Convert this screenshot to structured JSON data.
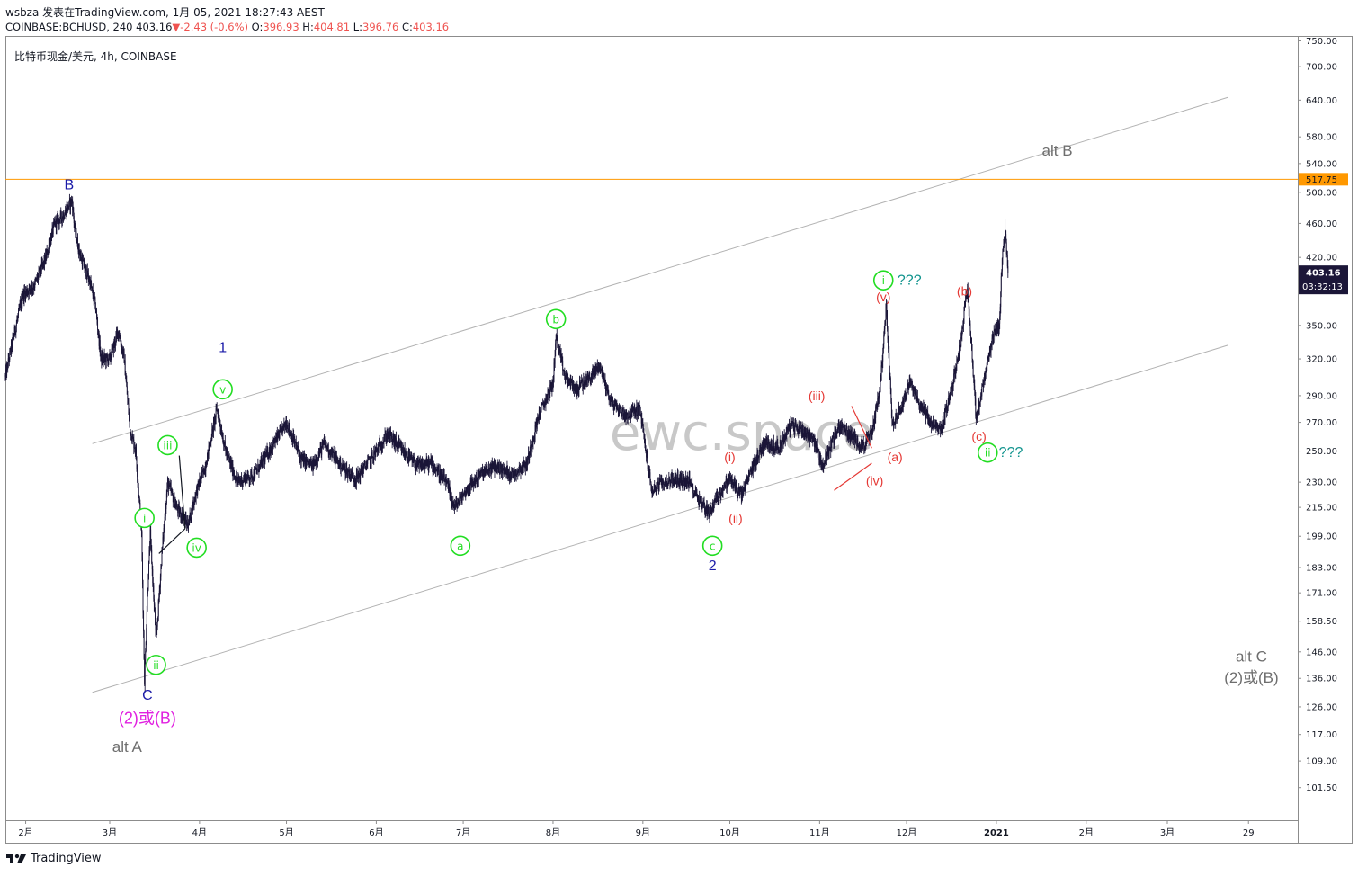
{
  "header": {
    "line1_user": "wsbza",
    "line1_published": "发表在TradingView.com, 1月 05, 2021 18:27:43 AEST",
    "line2_symbol": "COINBASE:BCHUSD, 240",
    "line2_last": "403.16",
    "line2_change": "-2.43 (-0.6%)",
    "line2_open_label": "O:",
    "line2_open": "396.93",
    "line2_high_label": "H:",
    "line2_high": "404.81",
    "line2_low_label": "L:",
    "line2_low": "396.76",
    "line2_close_label": "C:",
    "line2_close": "403.16",
    "symbol_title": "比特币现金/美元, 4h, COINBASE"
  },
  "footer": {
    "brand": "TradingView"
  },
  "colors": {
    "candle": "#1b1638",
    "channel": "#b2b2b2",
    "hline": "#ff9800",
    "green": "#22dd22",
    "red": "#e53935",
    "blue": "#1a1aa8",
    "magenta": "#e020e0",
    "grey_label": "#6e6e6e",
    "teal": "#12948e",
    "watermark": "#c8c8c8"
  },
  "chart_data": {
    "type": "candlestick",
    "symbol": "COINBASE:BCHUSD",
    "interval": "4h",
    "y_axis": {
      "scale": "log",
      "ylim": [
        93,
        760
      ],
      "ticks": [
        101.5,
        109,
        117,
        126,
        136,
        146,
        158.5,
        171,
        183,
        199,
        215,
        230,
        250,
        270,
        290,
        320,
        350,
        420,
        460,
        500,
        540,
        580,
        640,
        700,
        750
      ],
      "tick_labels": [
        "101.50",
        "109.00",
        "117.00",
        "126.00",
        "136.00",
        "146.00",
        "158.50",
        "171.00",
        "183.00",
        "199.00",
        "215.00",
        "230.00",
        "250.00",
        "270.00",
        "290.00",
        "320.00",
        "350.00",
        "420.00",
        "460.00",
        "500.00",
        "540.00",
        "580.00",
        "640.00",
        "700.00",
        "750.00"
      ],
      "last_price_label": "403.16",
      "countdown_label": "03:32:13",
      "hline_label": "517.75"
    },
    "x_axis": {
      "xlim": [
        "2020-01-25",
        "2021-04-15"
      ],
      "ticks": [
        "2020-02-01",
        "2020-03-01",
        "2020-04-01",
        "2020-05-01",
        "2020-06-01",
        "2020-07-01",
        "2020-08-01",
        "2020-09-01",
        "2020-10-01",
        "2020-11-01",
        "2020-12-01",
        "2021-01-01",
        "2021-02-01",
        "2021-03-01",
        "2021-03-29"
      ],
      "tick_labels": [
        "2月",
        "3月",
        "4月",
        "5月",
        "6月",
        "7月",
        "8月",
        "9月",
        "10月",
        "11月",
        "12月",
        "2021",
        "2月",
        "3月",
        "29"
      ]
    },
    "price_path": [
      [
        "2020-01-25",
        305
      ],
      [
        "2020-01-27",
        330
      ],
      [
        "2020-01-31",
        380
      ],
      [
        "2020-02-04",
        390
      ],
      [
        "2020-02-08",
        420
      ],
      [
        "2020-02-11",
        460
      ],
      [
        "2020-02-14",
        470
      ],
      [
        "2020-02-17",
        490
      ],
      [
        "2020-02-18",
        450
      ],
      [
        "2020-02-20",
        420
      ],
      [
        "2020-02-23",
        395
      ],
      [
        "2020-02-25",
        370
      ],
      [
        "2020-02-27",
        320
      ],
      [
        "2020-03-01",
        320
      ],
      [
        "2020-03-04",
        345
      ],
      [
        "2020-03-06",
        320
      ],
      [
        "2020-03-08",
        265
      ],
      [
        "2020-03-10",
        250
      ],
      [
        "2020-03-12",
        200
      ],
      [
        "2020-03-13",
        135
      ],
      [
        "2020-03-14",
        170
      ],
      [
        "2020-03-15",
        200
      ],
      [
        "2020-03-17",
        150
      ],
      [
        "2020-03-19",
        190
      ],
      [
        "2020-03-21",
        230
      ],
      [
        "2020-03-24",
        215
      ],
      [
        "2020-03-28",
        205
      ],
      [
        "2020-03-31",
        225
      ],
      [
        "2020-04-03",
        240
      ],
      [
        "2020-04-07",
        280
      ],
      [
        "2020-04-10",
        250
      ],
      [
        "2020-04-14",
        230
      ],
      [
        "2020-04-20",
        235
      ],
      [
        "2020-04-25",
        250
      ],
      [
        "2020-05-01",
        270
      ],
      [
        "2020-05-06",
        245
      ],
      [
        "2020-05-10",
        240
      ],
      [
        "2020-05-14",
        255
      ],
      [
        "2020-05-20",
        240
      ],
      [
        "2020-05-25",
        232
      ],
      [
        "2020-06-01",
        250
      ],
      [
        "2020-06-05",
        262
      ],
      [
        "2020-06-10",
        250
      ],
      [
        "2020-06-15",
        240
      ],
      [
        "2020-06-20",
        242
      ],
      [
        "2020-06-25",
        230
      ],
      [
        "2020-06-28",
        215
      ],
      [
        "2020-07-02",
        225
      ],
      [
        "2020-07-07",
        235
      ],
      [
        "2020-07-12",
        240
      ],
      [
        "2020-07-18",
        235
      ],
      [
        "2020-07-23",
        242
      ],
      [
        "2020-07-27",
        275
      ],
      [
        "2020-08-01",
        300
      ],
      [
        "2020-08-02",
        340
      ],
      [
        "2020-08-05",
        305
      ],
      [
        "2020-08-09",
        295
      ],
      [
        "2020-08-14",
        305
      ],
      [
        "2020-08-17",
        315
      ],
      [
        "2020-08-21",
        285
      ],
      [
        "2020-08-26",
        275
      ],
      [
        "2020-08-31",
        280
      ],
      [
        "2020-09-02",
        250
      ],
      [
        "2020-09-04",
        225
      ],
      [
        "2020-09-08",
        230
      ],
      [
        "2020-09-12",
        232
      ],
      [
        "2020-09-17",
        230
      ],
      [
        "2020-09-21",
        218
      ],
      [
        "2020-09-24",
        212
      ],
      [
        "2020-09-27",
        222
      ],
      [
        "2020-10-01",
        232
      ],
      [
        "2020-10-05",
        222
      ],
      [
        "2020-10-09",
        240
      ],
      [
        "2020-10-13",
        256
      ],
      [
        "2020-10-18",
        252
      ],
      [
        "2020-10-22",
        268
      ],
      [
        "2020-10-26",
        265
      ],
      [
        "2020-10-30",
        258
      ],
      [
        "2020-11-02",
        240
      ],
      [
        "2020-11-05",
        255
      ],
      [
        "2020-11-08",
        268
      ],
      [
        "2020-11-12",
        260
      ],
      [
        "2020-11-16",
        253
      ],
      [
        "2020-11-19",
        262
      ],
      [
        "2020-11-22",
        300
      ],
      [
        "2020-11-24",
        370
      ],
      [
        "2020-11-26",
        270
      ],
      [
        "2020-11-29",
        280
      ],
      [
        "2020-12-02",
        300
      ],
      [
        "2020-12-06",
        282
      ],
      [
        "2020-12-10",
        268
      ],
      [
        "2020-12-13",
        265
      ],
      [
        "2020-12-17",
        300
      ],
      [
        "2020-12-20",
        340
      ],
      [
        "2020-12-22",
        390
      ],
      [
        "2020-12-24",
        310
      ],
      [
        "2020-12-25",
        272
      ],
      [
        "2020-12-28",
        305
      ],
      [
        "2020-12-31",
        340
      ],
      [
        "2021-01-02",
        350
      ],
      [
        "2021-01-03",
        420
      ],
      [
        "2021-01-04",
        450
      ],
      [
        "2021-01-05",
        403
      ]
    ],
    "key_extremes": [
      {
        "date": "2020-02-17",
        "price": 490
      },
      {
        "date": "2020-03-13",
        "price": 134
      },
      {
        "date": "2020-08-02",
        "price": 342
      },
      {
        "date": "2020-09-24",
        "price": 206
      },
      {
        "date": "2020-11-24",
        "price": 376
      },
      {
        "date": "2020-12-22",
        "price": 391
      },
      {
        "date": "2020-12-25",
        "price": 268
      },
      {
        "date": "2021-01-04",
        "price": 465
      }
    ],
    "channel": {
      "upper": [
        [
          "2020-02-24",
          255
        ],
        [
          "2021-03-22",
          645
        ]
      ],
      "lower": [
        [
          "2020-02-24",
          131
        ],
        [
          "2021-03-22",
          332
        ]
      ]
    },
    "hline": {
      "price": 517.75
    },
    "wedges": [
      [
        [
          "2020-03-18",
          190
        ],
        [
          "2020-03-27",
          203
        ]
      ],
      [
        [
          "2020-03-27",
          203
        ],
        [
          "2020-03-25",
          247
        ]
      ],
      [
        [
          "2020-11-06",
          225
        ],
        [
          "2020-11-19",
          242
        ]
      ],
      [
        [
          "2020-11-12",
          282
        ],
        [
          "2020-11-19",
          252
        ]
      ]
    ],
    "annotations": [
      {
        "text": "B",
        "date": "2020-02-16",
        "price": 510,
        "color": "blue",
        "size": 16
      },
      {
        "text": "C",
        "date": "2020-03-14",
        "price": 130,
        "color": "blue",
        "size": 16
      },
      {
        "text": "(2)或(B)",
        "date": "2020-03-14",
        "price": 122,
        "color": "magenta",
        "size": 18
      },
      {
        "text": "alt A",
        "date": "2020-03-07",
        "price": 113,
        "color": "grey",
        "size": 17
      },
      {
        "text": "1",
        "date": "2020-04-09",
        "price": 330,
        "color": "blue",
        "size": 16
      },
      {
        "text": "2",
        "date": "2020-09-25",
        "price": 184,
        "color": "blue",
        "size": 16
      },
      {
        "text": "i",
        "date": "2020-03-13",
        "price": 209,
        "circle": true,
        "color": "green"
      },
      {
        "text": "ii",
        "date": "2020-03-17",
        "price": 141,
        "circle": true,
        "color": "green"
      },
      {
        "text": "iii",
        "date": "2020-03-21",
        "price": 254,
        "circle": true,
        "color": "green"
      },
      {
        "text": "iv",
        "date": "2020-03-31",
        "price": 193,
        "circle": true,
        "color": "green"
      },
      {
        "text": "v",
        "date": "2020-04-09",
        "price": 295,
        "circle": true,
        "color": "green"
      },
      {
        "text": "a",
        "date": "2020-06-30",
        "price": 194,
        "circle": true,
        "color": "green"
      },
      {
        "text": "b",
        "date": "2020-08-02",
        "price": 356,
        "circle": true,
        "color": "green"
      },
      {
        "text": "c",
        "date": "2020-09-25",
        "price": 194,
        "circle": true,
        "color": "green"
      },
      {
        "text": "i",
        "date": "2020-11-23",
        "price": 395,
        "circle": true,
        "color": "green"
      },
      {
        "text": "ii",
        "date": "2020-12-29",
        "price": 249,
        "circle": true,
        "color": "green"
      },
      {
        "text": "???",
        "date": "2020-12-02",
        "price": 395,
        "color": "teal",
        "size": 16
      },
      {
        "text": "???",
        "date": "2021-01-06",
        "price": 249,
        "color": "teal",
        "size": 16
      },
      {
        "text": "(i)",
        "date": "2020-10-01",
        "price": 246,
        "color": "red",
        "size": 14
      },
      {
        "text": "(ii)",
        "date": "2020-10-03",
        "price": 209,
        "color": "red",
        "size": 14
      },
      {
        "text": "(iii)",
        "date": "2020-10-31",
        "price": 290,
        "color": "red",
        "size": 14
      },
      {
        "text": "(iv)",
        "date": "2020-11-20",
        "price": 231,
        "color": "red",
        "size": 14
      },
      {
        "text": "(v)",
        "date": "2020-11-23",
        "price": 378,
        "color": "red",
        "size": 14
      },
      {
        "text": "(a)",
        "date": "2020-11-27",
        "price": 246,
        "color": "red",
        "size": 14
      },
      {
        "text": "(b)",
        "date": "2020-12-21",
        "price": 384,
        "color": "red",
        "size": 14
      },
      {
        "text": "(c)",
        "date": "2020-12-26",
        "price": 260,
        "color": "red",
        "size": 14
      },
      {
        "text": "alt B",
        "date": "2021-01-22",
        "price": 558,
        "color": "grey",
        "size": 17
      },
      {
        "text": "alt C",
        "date": "2021-03-30",
        "price": 144,
        "color": "grey",
        "size": 17
      },
      {
        "text": "(2)或(B)",
        "date": "2021-03-30",
        "price": 136,
        "color": "grey",
        "size": 17
      }
    ],
    "watermark": "ewc.space"
  }
}
